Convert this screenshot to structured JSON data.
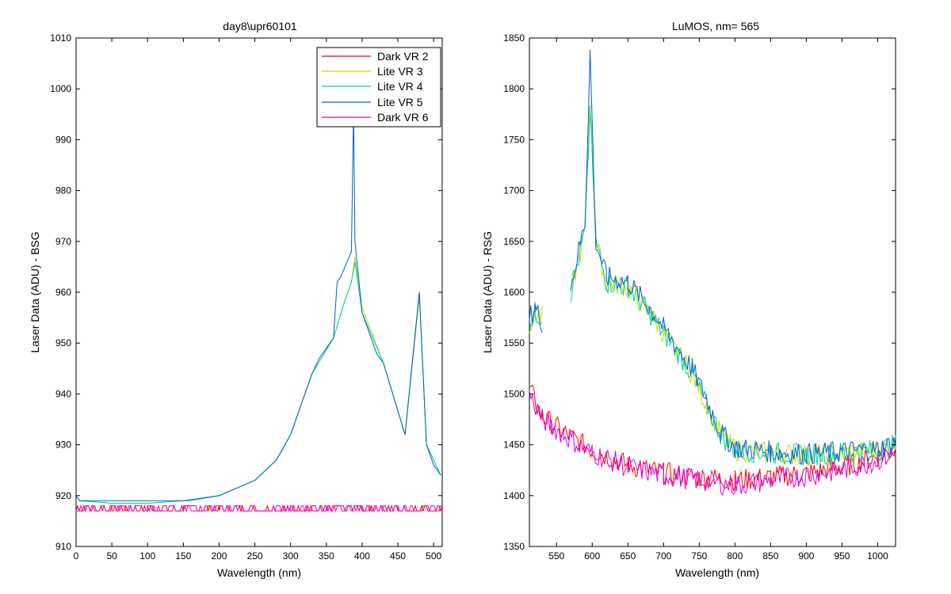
{
  "chart_data": [
    {
      "type": "line",
      "title": "day8\\upr60101",
      "xlabel": "Wavelength (nm)",
      "ylabel": "Laser Data (ADU) - BSG",
      "xlim": [
        0,
        512
      ],
      "ylim": [
        910,
        1010
      ],
      "xticks": [
        0,
        50,
        100,
        150,
        200,
        250,
        300,
        350,
        400,
        450,
        500
      ],
      "yticks": [
        910,
        920,
        930,
        940,
        950,
        960,
        970,
        980,
        990,
        1000,
        1010
      ],
      "grid": false,
      "legend": "top-right",
      "series": [
        {
          "name": "Dark VR 2",
          "color": "#ff0000",
          "x": [
            0,
            50,
            100,
            150,
            200,
            250,
            300,
            350,
            400,
            450,
            512
          ],
          "y": [
            917,
            917.5,
            917,
            917.5,
            917,
            917.5,
            917,
            917.5,
            917,
            917.5,
            917
          ]
        },
        {
          "name": "Lite VR 3",
          "color": "#c8dc00",
          "x": [
            0,
            5,
            50,
            100,
            150,
            160,
            200,
            250,
            280,
            300,
            330,
            360,
            375,
            385,
            390,
            400,
            430,
            460,
            480,
            490,
            510
          ],
          "y": [
            920,
            919,
            918.5,
            918.5,
            919,
            919,
            920,
            923,
            927,
            932,
            944,
            951,
            958,
            962,
            967,
            957,
            946,
            932,
            959,
            930,
            924
          ]
        },
        {
          "name": "Lite VR 4",
          "color": "#00d0a0",
          "x": [
            0,
            5,
            50,
            100,
            150,
            160,
            200,
            250,
            280,
            300,
            330,
            360,
            375,
            385,
            390,
            400,
            430,
            460,
            480,
            490,
            510
          ],
          "y": [
            920,
            919,
            918.5,
            918.5,
            919,
            919,
            920,
            923,
            927,
            932,
            944,
            951,
            958,
            962,
            966,
            956,
            946,
            932,
            960,
            930,
            924
          ]
        },
        {
          "name": "Lite VR 5",
          "color": "#0060d0",
          "x": [
            0,
            5,
            50,
            100,
            150,
            200,
            250,
            280,
            300,
            330,
            340,
            360,
            365,
            370,
            385,
            388,
            390,
            400,
            420,
            430,
            460,
            480,
            490,
            500,
            510
          ],
          "y": [
            920,
            919,
            919,
            919,
            919,
            920,
            923,
            927,
            932,
            944,
            947,
            951,
            962,
            963,
            968,
            996,
            970,
            956,
            948,
            946,
            932,
            960,
            930,
            926,
            924
          ]
        },
        {
          "name": "Dark VR 6",
          "color": "#e000e0",
          "x": [
            0,
            50,
            100,
            150,
            200,
            250,
            300,
            350,
            400,
            450,
            512
          ],
          "y": [
            917,
            917.5,
            917,
            917.5,
            917,
            917.5,
            917,
            917.5,
            917,
            917.5,
            917
          ]
        }
      ]
    },
    {
      "type": "line",
      "title": "LuMOS, nm= 565",
      "xlabel": "Wavelength (nm)",
      "ylabel": "Laser Data (ADU) - RSG",
      "xlim": [
        512,
        1025
      ],
      "ylim": [
        1350,
        1850
      ],
      "xticks": [
        550,
        600,
        650,
        700,
        750,
        800,
        850,
        900,
        950,
        1000
      ],
      "yticks": [
        1350,
        1400,
        1450,
        1500,
        1550,
        1600,
        1650,
        1700,
        1750,
        1800,
        1850
      ],
      "grid": false,
      "series": [
        {
          "name": "Dark VR 2",
          "color": "#ff0000",
          "x": [
            512,
            530,
            560,
            600,
            650,
            700,
            750,
            800,
            850,
            900,
            950,
            1000,
            1025
          ],
          "y": [
            1505,
            1478,
            1462,
            1445,
            1430,
            1422,
            1418,
            1415,
            1418,
            1422,
            1428,
            1438,
            1445
          ]
        },
        {
          "name": "Lite VR 3",
          "color": "#c8dc00",
          "x": [
            512,
            520,
            530,
            550,
            570,
            590,
            597,
            605,
            620,
            650,
            680,
            700,
            740,
            760,
            780,
            800,
            850,
            900,
            950,
            1000,
            1025
          ],
          "y": [
            1570,
            1580,
            1575,
            null,
            1600,
            1660,
            1790,
            1650,
            1610,
            1605,
            1580,
            1560,
            1520,
            1490,
            1460,
            1445,
            1442,
            1440,
            1442,
            1445,
            1450
          ]
        },
        {
          "name": "Lite VR 4",
          "color": "#00d0a0",
          "x": [
            512,
            520,
            530,
            550,
            570,
            590,
            597,
            605,
            620,
            650,
            680,
            700,
            740,
            760,
            780,
            800,
            850,
            900,
            950,
            1000,
            1025
          ],
          "y": [
            1570,
            1580,
            1575,
            null,
            1600,
            1660,
            1780,
            1650,
            1610,
            1605,
            1580,
            1560,
            1520,
            1490,
            1460,
            1445,
            1442,
            1440,
            1442,
            1445,
            1450
          ]
        },
        {
          "name": "Lite VR 5",
          "color": "#0060d0",
          "x": [
            512,
            520,
            530,
            550,
            570,
            590,
            597,
            605,
            620,
            650,
            680,
            700,
            740,
            760,
            780,
            800,
            850,
            900,
            950,
            1000,
            1025
          ],
          "y": [
            1575,
            1585,
            1570,
            null,
            1605,
            1670,
            1835,
            1650,
            1615,
            1610,
            1585,
            1565,
            1525,
            1495,
            1462,
            1447,
            1443,
            1441,
            1443,
            1446,
            1452
          ]
        },
        {
          "name": "Dark VR 6",
          "color": "#e000e0",
          "x": [
            512,
            530,
            560,
            600,
            650,
            700,
            750,
            800,
            850,
            900,
            950,
            1000,
            1025
          ],
          "y": [
            1500,
            1475,
            1460,
            1442,
            1428,
            1420,
            1415,
            1410,
            1415,
            1420,
            1425,
            1435,
            1442
          ]
        }
      ]
    }
  ]
}
